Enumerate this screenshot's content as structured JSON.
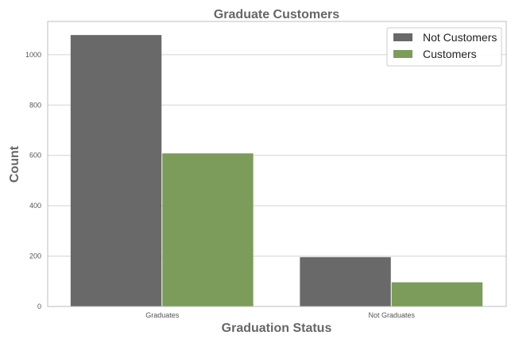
{
  "chart_data": {
    "type": "bar",
    "title": "Graduate Customers",
    "xlabel": "Graduation Status",
    "ylabel": "Count",
    "categories": [
      "Graduates",
      "Not Graduates"
    ],
    "series": [
      {
        "name": "Not Customers",
        "values": [
          1078,
          196
        ],
        "color": "#696969"
      },
      {
        "name": "Customers",
        "values": [
          608,
          96
        ],
        "color": "#7b9c5a"
      }
    ],
    "ylim": [
      0,
      1132
    ],
    "yticks": [
      0,
      200,
      400,
      600,
      800,
      1000
    ],
    "grid": true,
    "legend_position": "top-right"
  }
}
